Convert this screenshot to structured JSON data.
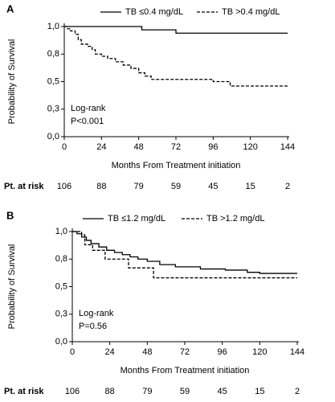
{
  "chart_data": [
    {
      "type": "line",
      "panel": "A",
      "step": true,
      "y_label": "Probability of Survival",
      "x_label": "Months From Treatment initiation",
      "annotation": [
        "Log-rank",
        "P<0.001"
      ],
      "xlim": [
        0,
        144
      ],
      "xticks": [
        0,
        24,
        48,
        72,
        96,
        120,
        144
      ],
      "ylim": [
        0,
        1
      ],
      "yticks": [
        {
          "value": 0,
          "label": "0,0"
        },
        {
          "value": 0.25,
          "label": "0,3"
        },
        {
          "value": 0.5,
          "label": "0,5"
        },
        {
          "value": 0.75,
          "label": "0,8"
        },
        {
          "value": 1,
          "label": "1,0"
        }
      ],
      "series": [
        {
          "name": "TB ≤0.4 mg/dL",
          "color": "#000000",
          "dashed": false,
          "x": [
            0,
            50,
            50,
            72,
            72,
            144
          ],
          "values": [
            1,
            1,
            0.97,
            0.97,
            0.94,
            0.94
          ]
        },
        {
          "name": "TB >0.4 mg/dL",
          "color": "#000000",
          "dashed": true,
          "x": [
            0,
            2,
            2,
            4,
            4,
            7,
            7,
            9,
            9,
            11,
            11,
            15,
            15,
            18,
            18,
            20,
            20,
            24,
            24,
            28,
            28,
            33,
            33,
            38,
            38,
            43,
            43,
            48,
            48,
            52,
            52,
            56,
            56,
            96,
            96,
            107,
            107,
            144
          ],
          "values": [
            1,
            1,
            0.98,
            0.98,
            0.96,
            0.96,
            0.93,
            0.93,
            0.88,
            0.88,
            0.84,
            0.84,
            0.82,
            0.82,
            0.79,
            0.79,
            0.75,
            0.75,
            0.73,
            0.73,
            0.71,
            0.71,
            0.68,
            0.68,
            0.65,
            0.65,
            0.62,
            0.62,
            0.58,
            0.58,
            0.55,
            0.55,
            0.52,
            0.52,
            0.5,
            0.5,
            0.46,
            0.46
          ]
        }
      ],
      "at_risk": {
        "label": "Pt. at risk",
        "values": [
          106,
          88,
          79,
          59,
          45,
          15,
          2
        ]
      }
    },
    {
      "type": "line",
      "panel": "B",
      "step": true,
      "y_label": "Probability of Survival",
      "x_label": "Months From Treatment initiation",
      "annotation": [
        "Log-rank",
        "P=0.56"
      ],
      "xlim": [
        0,
        144
      ],
      "xticks": [
        0,
        24,
        48,
        72,
        96,
        120,
        144
      ],
      "ylim": [
        0,
        1
      ],
      "yticks": [
        {
          "value": 0,
          "label": "0,0"
        },
        {
          "value": 0.25,
          "label": "0,3"
        },
        {
          "value": 0.5,
          "label": "0,5"
        },
        {
          "value": 0.75,
          "label": "0,8"
        },
        {
          "value": 1,
          "label": "1,0"
        }
      ],
      "series": [
        {
          "name": "TB ≤1.2 mg/dL",
          "color": "#000000",
          "dashed": false,
          "x": [
            0,
            3,
            3,
            6,
            6,
            9,
            9,
            12,
            12,
            17,
            17,
            22,
            22,
            27,
            27,
            32,
            32,
            37,
            37,
            42,
            42,
            48,
            48,
            56,
            56,
            66,
            66,
            82,
            82,
            98,
            98,
            112,
            112,
            120,
            120,
            144
          ],
          "values": [
            1,
            1,
            0.98,
            0.98,
            0.95,
            0.95,
            0.92,
            0.92,
            0.89,
            0.89,
            0.86,
            0.86,
            0.83,
            0.83,
            0.81,
            0.81,
            0.79,
            0.79,
            0.77,
            0.77,
            0.75,
            0.75,
            0.73,
            0.73,
            0.7,
            0.7,
            0.68,
            0.68,
            0.66,
            0.66,
            0.65,
            0.65,
            0.63,
            0.63,
            0.62,
            0.62
          ]
        },
        {
          "name": "TB >1.2 mg/dL",
          "color": "#000000",
          "dashed": true,
          "x": [
            0,
            6,
            6,
            8,
            8,
            13,
            13,
            21,
            21,
            36,
            36,
            52,
            52,
            144
          ],
          "values": [
            1,
            1,
            0.97,
            0.97,
            0.88,
            0.88,
            0.83,
            0.83,
            0.75,
            0.75,
            0.67,
            0.67,
            0.58,
            0.58
          ]
        }
      ],
      "at_risk": {
        "label": "Pt. at risk",
        "values": [
          106,
          88,
          79,
          59,
          45,
          15,
          2
        ]
      }
    }
  ]
}
